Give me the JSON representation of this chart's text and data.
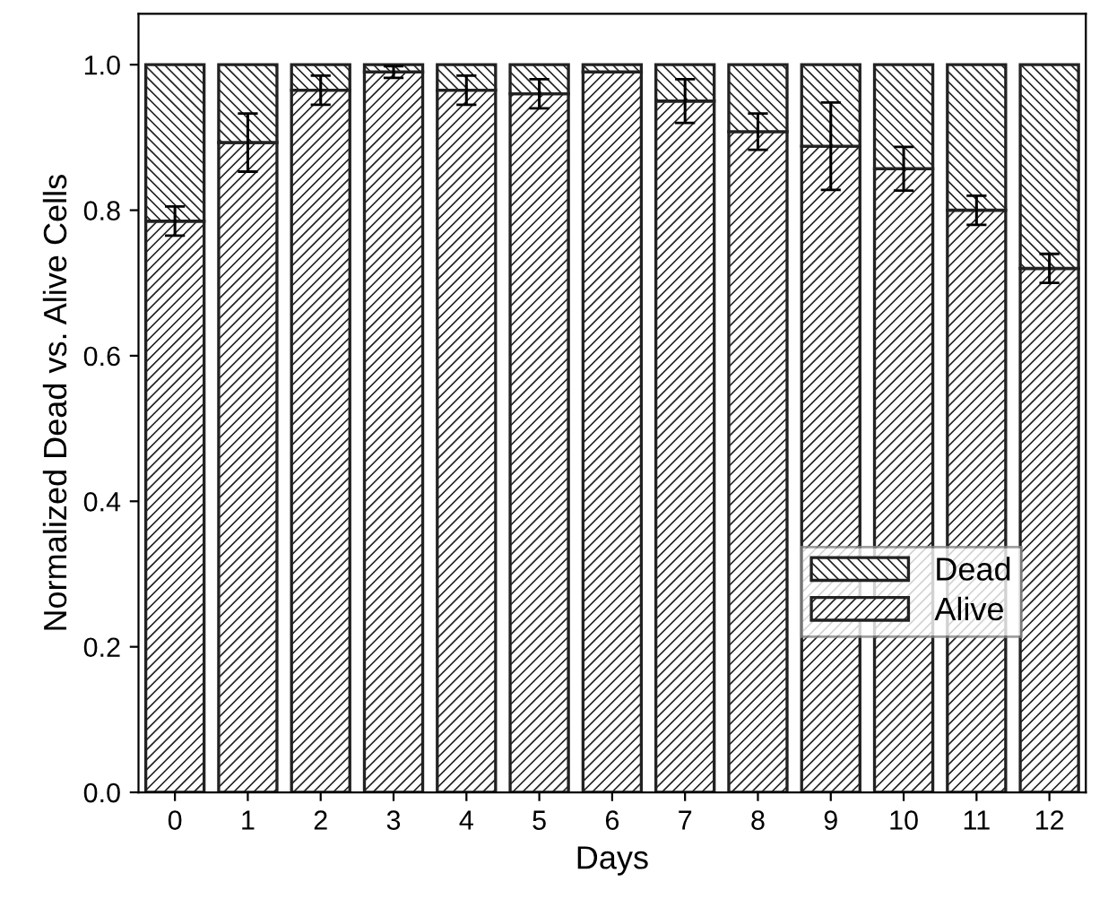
{
  "chart_data": {
    "type": "bar",
    "stacked": true,
    "xlabel": "Days",
    "ylabel": "Normalized Dead vs. Alive Cells",
    "categories": [
      "0",
      "1",
      "2",
      "3",
      "4",
      "5",
      "6",
      "7",
      "8",
      "9",
      "10",
      "11",
      "12"
    ],
    "series": [
      {
        "name": "Alive",
        "color": "#222222",
        "values": [
          0.785,
          0.893,
          0.965,
          0.99,
          0.965,
          0.96,
          0.99,
          0.95,
          0.908,
          0.888,
          0.857,
          0.8,
          0.72
        ],
        "errors": [
          0.02,
          0.04,
          0.02,
          0.008,
          0.02,
          0.02,
          null,
          0.03,
          0.025,
          0.06,
          0.03,
          0.02,
          0.02
        ]
      },
      {
        "name": "Dead",
        "color": "#222222",
        "values": [
          0.215,
          0.107,
          0.035,
          0.01,
          0.035,
          0.04,
          0.01,
          0.05,
          0.092,
          0.112,
          0.143,
          0.2,
          0.28
        ]
      }
    ],
    "ylim": [
      0,
      1.07
    ],
    "yticks": [
      {
        "value": 0,
        "label": "0.0"
      },
      {
        "value": 0.2,
        "label": "0.2"
      },
      {
        "value": 0.4,
        "label": "0.4"
      },
      {
        "value": 0.6,
        "label": "0.6"
      },
      {
        "value": 0.8,
        "label": "0.8"
      },
      {
        "value": 1.0,
        "label": "1.0"
      }
    ],
    "legend": "right",
    "grid": false
  }
}
